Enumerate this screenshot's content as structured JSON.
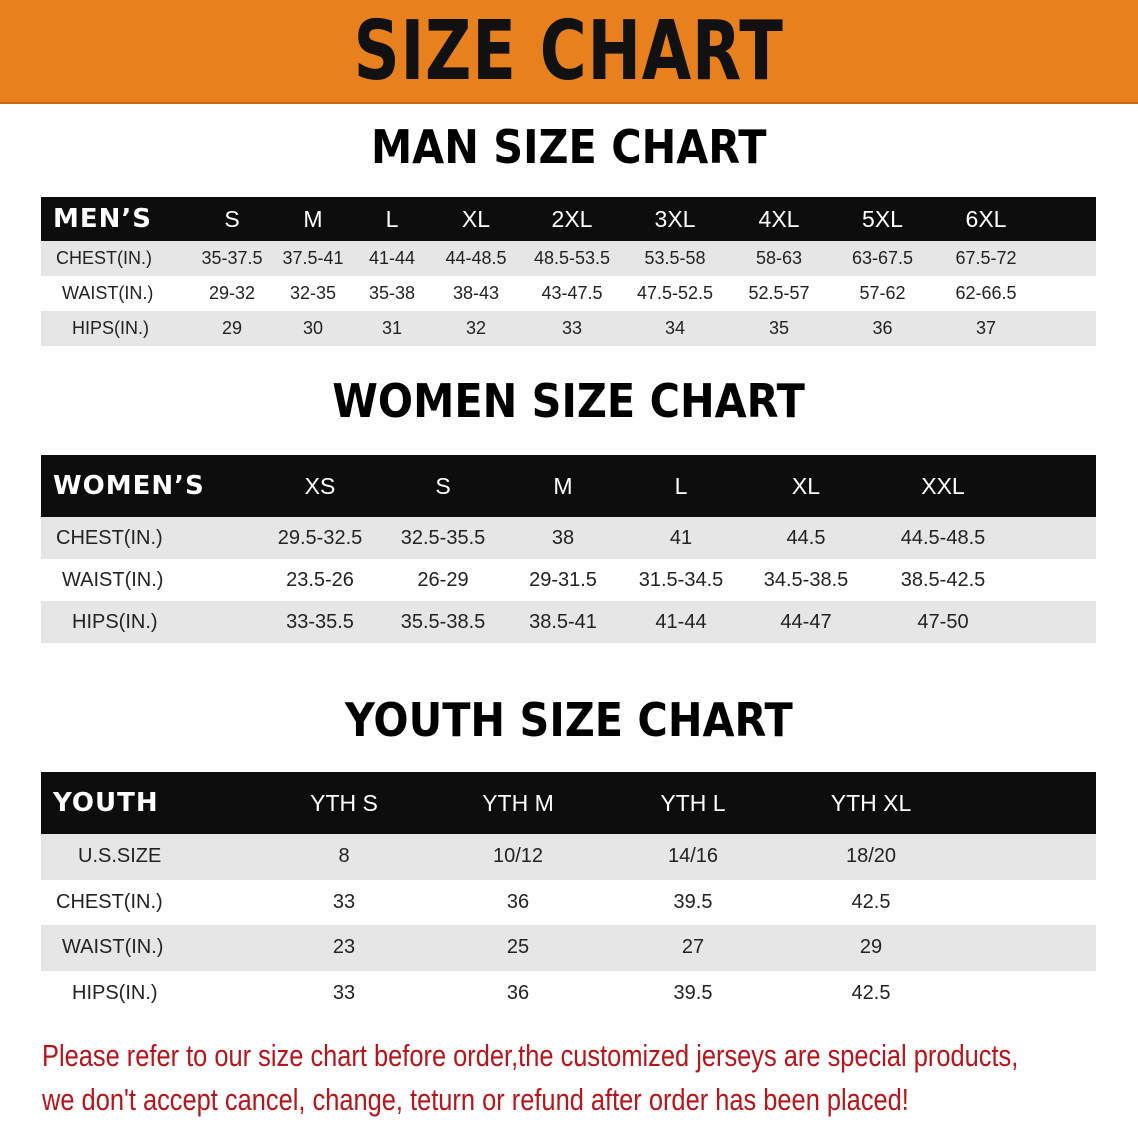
{
  "banner": {
    "title": "SIZE CHART"
  },
  "colors": {
    "banner": "#e8801e",
    "header_row": "#0d0d0d",
    "stripe": "#e6e6e6",
    "note": "#b3161c"
  },
  "men": {
    "title": "MAN SIZE CHART",
    "header": [
      "MEN’S",
      "S",
      "M",
      "L",
      "XL",
      "2XL",
      "3XL",
      "4XL",
      "5XL",
      "6XL"
    ],
    "rows": [
      [
        "CHEST(IN.)",
        "35-37.5",
        "37.5-41",
        "41-44",
        "44-48.5",
        "48.5-53.5",
        "53.5-58",
        "58-63",
        "63-67.5",
        "67.5-72"
      ],
      [
        "WAIST(IN.)",
        "29-32",
        "32-35",
        "35-38",
        "38-43",
        "43-47.5",
        "47.5-52.5",
        "52.5-57",
        "57-62",
        "62-66.5"
      ],
      [
        "HIPS(IN.)",
        "29",
        "30",
        "31",
        "32",
        "33",
        "34",
        "35",
        "36",
        "37"
      ]
    ]
  },
  "women": {
    "title": "WOMEN SIZE CHART",
    "header": [
      "WOMEN’S",
      "XS",
      "S",
      "M",
      "L",
      "XL",
      "XXL"
    ],
    "rows": [
      [
        "CHEST(IN.)",
        "29.5-32.5",
        "32.5-35.5",
        "38",
        "41",
        "44.5",
        "44.5-48.5"
      ],
      [
        "WAIST(IN.)",
        "23.5-26",
        "26-29",
        "29-31.5",
        "31.5-34.5",
        "34.5-38.5",
        "38.5-42.5"
      ],
      [
        "HIPS(IN.)",
        "33-35.5",
        "35.5-38.5",
        "38.5-41",
        "41-44",
        "44-47",
        "47-50"
      ]
    ]
  },
  "youth": {
    "title": "YOUTH SIZE CHART",
    "header": [
      "YOUTH",
      "YTH S",
      "YTH M",
      "YTH L",
      "YTH XL"
    ],
    "rows": [
      [
        "U.S.SIZE",
        "8",
        "10/12",
        "14/16",
        "18/20"
      ],
      [
        "CHEST(IN.)",
        "33",
        "36",
        "39.5",
        "42.5"
      ],
      [
        "WAIST(IN.)",
        "23",
        "25",
        "27",
        "29"
      ],
      [
        "HIPS(IN.)",
        "33",
        "36",
        "39.5",
        "42.5"
      ]
    ]
  },
  "note": {
    "line1": "Please refer to our size chart before order,the customized jerseys are special products,",
    "line2": "we don't accept cancel, change, teturn or refund after order has been placed!"
  }
}
